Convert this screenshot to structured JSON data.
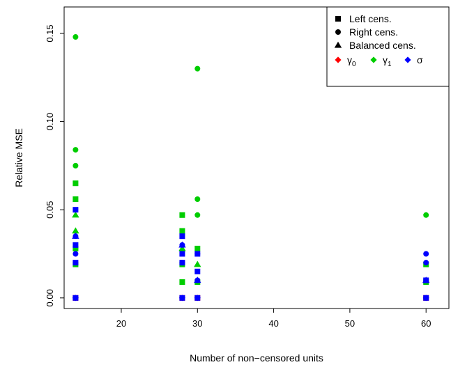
{
  "chart_data": {
    "type": "scatter",
    "xlabel": "Number of non−censored units",
    "ylabel": "Relative MSE",
    "xlim": [
      12.5,
      63
    ],
    "ylim": [
      -0.006,
      0.165
    ],
    "x_ticks": [
      20,
      30,
      40,
      50,
      60
    ],
    "x_tick_labels": [
      "20",
      "30",
      "40",
      "50",
      "60"
    ],
    "y_ticks": [
      0.0,
      0.05,
      0.1,
      0.15
    ],
    "y_tick_labels": [
      "0.00",
      "0.05",
      "0.10",
      "0.15"
    ],
    "grid": false,
    "legend_position": "top-right",
    "legend_shapes": [
      {
        "label": "Left cens.",
        "shape": "square"
      },
      {
        "label": "Right cens.",
        "shape": "circle"
      },
      {
        "label": "Balanced cens.",
        "shape": "triangle"
      }
    ],
    "legend_colors": [
      {
        "label": "γ",
        "subscript": "0",
        "color": "#ff0000"
      },
      {
        "label": "γ",
        "subscript": "1",
        "color": "#00cd00"
      },
      {
        "label": "σ",
        "subscript": "",
        "color": "#0000ff"
      }
    ],
    "series": [
      {
        "shape": "circle",
        "color": "#00cd00",
        "points": [
          [
            14,
            0.148
          ],
          [
            14,
            0.084
          ],
          [
            14,
            0.075
          ],
          [
            14,
            0.028
          ],
          [
            30,
            0.13
          ],
          [
            30,
            0.056
          ],
          [
            30,
            0.047
          ],
          [
            60,
            0.047
          ]
        ]
      },
      {
        "shape": "square",
        "color": "#00cd00",
        "points": [
          [
            14,
            0.065
          ],
          [
            14,
            0.056
          ],
          [
            14,
            0.028
          ],
          [
            14,
            0.019
          ],
          [
            28,
            0.047
          ],
          [
            28,
            0.038
          ],
          [
            28,
            0.019
          ],
          [
            28,
            0.009
          ],
          [
            30,
            0.028
          ],
          [
            30,
            0.009
          ],
          [
            60,
            0.019
          ],
          [
            60,
            0.009
          ]
        ]
      },
      {
        "shape": "triangle",
        "color": "#00cd00",
        "points": [
          [
            14,
            0.047
          ],
          [
            14,
            0.038
          ],
          [
            28,
            0.028
          ],
          [
            30,
            0.019
          ]
        ]
      },
      {
        "shape": "square",
        "color": "#ff0000",
        "points": [
          [
            14,
            0.0
          ],
          [
            28,
            0.0
          ],
          [
            30,
            0.0
          ],
          [
            60,
            0.0
          ]
        ]
      },
      {
        "shape": "circle",
        "color": "#0000ff",
        "points": [
          [
            14,
            0.035
          ],
          [
            14,
            0.025
          ],
          [
            28,
            0.03
          ],
          [
            28,
            0.02
          ],
          [
            30,
            0.025
          ],
          [
            30,
            0.01
          ],
          [
            60,
            0.025
          ],
          [
            60,
            0.02
          ]
        ]
      },
      {
        "shape": "square",
        "color": "#0000ff",
        "points": [
          [
            14,
            0.05
          ],
          [
            14,
            0.03
          ],
          [
            14,
            0.02
          ],
          [
            14,
            0.0
          ],
          [
            28,
            0.035
          ],
          [
            28,
            0.025
          ],
          [
            28,
            0.02
          ],
          [
            28,
            0.0
          ],
          [
            30,
            0.025
          ],
          [
            30,
            0.015
          ],
          [
            30,
            0.0
          ],
          [
            60,
            0.01
          ],
          [
            60,
            0.0
          ]
        ]
      },
      {
        "shape": "triangle",
        "color": "#0000ff",
        "points": [
          [
            14,
            0.035
          ],
          [
            28,
            0.03
          ],
          [
            30,
            0.01
          ],
          [
            60,
            0.01
          ]
        ]
      },
      {
        "shape": "diamond",
        "color": "#0000ff",
        "points": [
          [
            14,
            0.0
          ],
          [
            28,
            0.0
          ],
          [
            30,
            0.0
          ],
          [
            60,
            0.0
          ]
        ]
      }
    ]
  }
}
